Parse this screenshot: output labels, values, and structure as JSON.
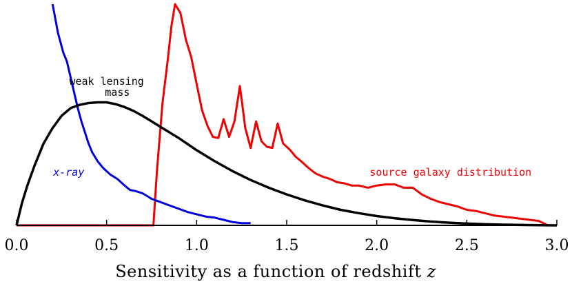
{
  "chart_data": {
    "type": "line",
    "title": "",
    "xlabel": "Sensitivity as a function of redshift z",
    "xlabel_parts": {
      "text": "Sensitivity as a function of redshift ",
      "variable": "z"
    },
    "ylabel": "",
    "xlim": [
      0.0,
      3.0
    ],
    "ylim": [
      0,
      1.0
    ],
    "x_ticks": [
      0.0,
      0.5,
      1.0,
      1.5,
      2.0,
      2.5,
      3.0
    ],
    "x_tick_labels": [
      "0.0",
      "0.5",
      "1.0",
      "1.5",
      "2.0",
      "2.5",
      "3.0"
    ],
    "grid": false,
    "series": [
      {
        "key": "xray",
        "color": "#0000dd",
        "x": [
          0.2,
          0.23,
          0.26,
          0.28,
          0.3,
          0.32,
          0.34,
          0.36,
          0.38,
          0.4,
          0.42,
          0.45,
          0.48,
          0.52,
          0.56,
          0.6,
          0.63,
          0.66,
          0.7,
          0.75,
          0.8,
          0.85,
          0.9,
          0.95,
          1.0,
          1.05,
          1.1,
          1.15,
          1.2,
          1.25,
          1.3
        ],
        "y": [
          1.0,
          0.87,
          0.78,
          0.74,
          0.67,
          0.6,
          0.53,
          0.47,
          0.42,
          0.37,
          0.33,
          0.29,
          0.26,
          0.23,
          0.21,
          0.18,
          0.16,
          0.155,
          0.145,
          0.12,
          0.105,
          0.09,
          0.075,
          0.06,
          0.05,
          0.04,
          0.035,
          0.025,
          0.015,
          0.01,
          0.01
        ]
      },
      {
        "key": "weak_lensing",
        "color": "#000000",
        "x": [
          0.0,
          0.03,
          0.06,
          0.1,
          0.15,
          0.2,
          0.25,
          0.3,
          0.35,
          0.4,
          0.45,
          0.5,
          0.55,
          0.6,
          0.65,
          0.7,
          0.75,
          0.8,
          0.9,
          1.0,
          1.1,
          1.2,
          1.3,
          1.4,
          1.5,
          1.6,
          1.7,
          1.8,
          1.9,
          2.0,
          2.1,
          2.2,
          2.3,
          2.4,
          2.5,
          2.6,
          2.7,
          2.8,
          2.9,
          3.0
        ],
        "y": [
          0.0,
          0.1,
          0.18,
          0.27,
          0.37,
          0.44,
          0.495,
          0.53,
          0.545,
          0.553,
          0.556,
          0.556,
          0.548,
          0.535,
          0.517,
          0.495,
          0.47,
          0.445,
          0.395,
          0.34,
          0.29,
          0.245,
          0.205,
          0.17,
          0.14,
          0.113,
          0.09,
          0.07,
          0.055,
          0.042,
          0.032,
          0.024,
          0.017,
          0.012,
          0.008,
          0.005,
          0.003,
          0.002,
          0.001,
          0.0
        ]
      },
      {
        "key": "source_galaxy",
        "color": "#ee0000",
        "x": [
          0.0,
          0.76,
          0.78,
          0.81,
          0.84,
          0.86,
          0.88,
          0.91,
          0.94,
          0.97,
          1.0,
          1.03,
          1.06,
          1.09,
          1.12,
          1.15,
          1.18,
          1.21,
          1.24,
          1.27,
          1.3,
          1.33,
          1.36,
          1.39,
          1.42,
          1.45,
          1.48,
          1.52,
          1.55,
          1.58,
          1.62,
          1.66,
          1.7,
          1.74,
          1.78,
          1.82,
          1.86,
          1.9,
          1.95,
          2.0,
          2.05,
          2.1,
          2.15,
          2.2,
          2.25,
          2.3,
          2.35,
          2.4,
          2.45,
          2.5,
          2.55,
          2.6,
          2.65,
          2.7,
          2.75,
          2.8,
          2.85,
          2.9,
          2.95,
          3.0
        ],
        "y": [
          0.0,
          0.0,
          0.25,
          0.55,
          0.75,
          0.9,
          1.0,
          0.96,
          0.84,
          0.76,
          0.64,
          0.52,
          0.45,
          0.4,
          0.395,
          0.48,
          0.4,
          0.47,
          0.63,
          0.44,
          0.35,
          0.47,
          0.38,
          0.355,
          0.35,
          0.46,
          0.37,
          0.34,
          0.31,
          0.29,
          0.26,
          0.235,
          0.22,
          0.21,
          0.195,
          0.19,
          0.18,
          0.18,
          0.17,
          0.18,
          0.185,
          0.185,
          0.17,
          0.17,
          0.14,
          0.12,
          0.105,
          0.095,
          0.085,
          0.07,
          0.065,
          0.055,
          0.045,
          0.04,
          0.035,
          0.03,
          0.025,
          0.02,
          0.0,
          0.0
        ]
      }
    ],
    "annotations": [
      {
        "key": "weak_lensing_l1",
        "text": "weak lensing",
        "color": "#000000",
        "x": 0.5,
        "y": 0.635,
        "italic": false
      },
      {
        "key": "weak_lensing_l2",
        "text": "mass",
        "color": "#000000",
        "x": 0.56,
        "y": 0.585,
        "italic": false
      },
      {
        "key": "xray",
        "text": "x-ray",
        "color": "#0000dd",
        "x": 0.29,
        "y": 0.225,
        "italic": true
      },
      {
        "key": "source_galaxy",
        "text": "source galaxy distribution",
        "color": "#ee0000",
        "x": 2.41,
        "y": 0.225,
        "italic": false
      }
    ]
  }
}
